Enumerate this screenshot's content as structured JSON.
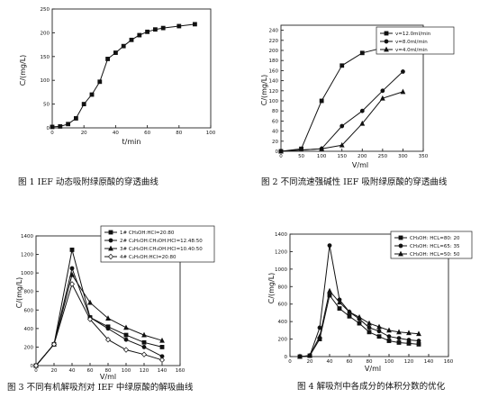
{
  "chart_data": [
    {
      "id": "fig1",
      "type": "line",
      "caption": "图 1   IEF 动态吸附绿原酸的穿透曲线",
      "xlabel": "t/min",
      "ylabel": "C/(mg/L)",
      "xlim": [
        0,
        100
      ],
      "ylim": [
        0,
        250
      ],
      "xticks": [
        0,
        20,
        40,
        60,
        80,
        100
      ],
      "yticks": [
        0,
        50,
        100,
        150,
        200,
        250
      ],
      "series": [
        {
          "name": "",
          "marker": "square",
          "x": [
            0,
            5,
            10,
            15,
            20,
            25,
            30,
            35,
            40,
            45,
            50,
            55,
            60,
            65,
            70,
            80,
            90
          ],
          "y": [
            2,
            3,
            8,
            20,
            50,
            70,
            97,
            145,
            158,
            172,
            185,
            195,
            202,
            207,
            210,
            214,
            218
          ]
        }
      ]
    },
    {
      "id": "fig2",
      "type": "line",
      "caption": "图 2   不同流速强碱性 IEF 吸附绿原酸的穿透曲线",
      "xlabel": "V/ml",
      "ylabel": "C/(mg/L)",
      "xlim": [
        0,
        350
      ],
      "ylim": [
        0,
        250
      ],
      "xticks": [
        0,
        50,
        100,
        150,
        200,
        250,
        300,
        350
      ],
      "yticks": [
        0,
        20,
        40,
        60,
        80,
        100,
        120,
        140,
        160,
        180,
        200,
        220,
        240
      ],
      "series": [
        {
          "name": "v=12.0ml/min",
          "marker": "square",
          "x": [
            0,
            50,
            100,
            150,
            200,
            250,
            300
          ],
          "y": [
            0,
            5,
            100,
            170,
            195,
            205,
            213
          ]
        },
        {
          "name": "v=8.0ml/min",
          "marker": "circle",
          "x": [
            0,
            100,
            150,
            200,
            250,
            300
          ],
          "y": [
            0,
            5,
            50,
            80,
            120,
            158
          ]
        },
        {
          "name": "v=4.0ml/min",
          "marker": "triangle",
          "x": [
            0,
            100,
            150,
            200,
            250,
            300
          ],
          "y": [
            0,
            5,
            12,
            55,
            105,
            118
          ]
        }
      ]
    },
    {
      "id": "fig3",
      "type": "line",
      "caption": "图 3   不同有机解吸剂对 IEF 中绿原酸的解吸曲线",
      "xlabel": "V/ml",
      "ylabel": "C/(mg/L)",
      "xlim": [
        0,
        160
      ],
      "ylim": [
        0,
        1400
      ],
      "xticks": [
        0,
        20,
        40,
        60,
        80,
        100,
        120,
        140,
        160
      ],
      "yticks": [
        0,
        200,
        400,
        600,
        800,
        1000,
        1200,
        1400
      ],
      "series": [
        {
          "name": "1# CH₃OH:HCl=20:80",
          "marker": "square",
          "x": [
            0,
            20,
            40,
            60,
            80,
            100,
            120,
            140
          ],
          "y": [
            0,
            230,
            1250,
            520,
            420,
            330,
            250,
            200
          ]
        },
        {
          "name": "2# C₂H₅OH:CH₃OH:HCl=12.48:50",
          "marker": "circle",
          "x": [
            0,
            20,
            40,
            60,
            80,
            100,
            120,
            140
          ],
          "y": [
            0,
            230,
            1050,
            520,
            400,
            280,
            200,
            100
          ]
        },
        {
          "name": "3# C₂H₅OH:CH₃OH:HCl=10.40:50",
          "marker": "triangle",
          "x": [
            0,
            20,
            40,
            60,
            80,
            100,
            120,
            140
          ],
          "y": [
            0,
            230,
            980,
            680,
            510,
            410,
            330,
            270
          ]
        },
        {
          "name": "4# C₂H₅OH:HCl=20:80",
          "marker": "diamond",
          "x": [
            0,
            20,
            40,
            60,
            80,
            100,
            120,
            140
          ],
          "y": [
            0,
            230,
            880,
            500,
            280,
            170,
            120,
            60
          ]
        }
      ]
    },
    {
      "id": "fig4",
      "type": "line",
      "caption": "图 4   解吸剂中各成分的体积分数的优化",
      "xlabel": "V/ml",
      "ylabel": "C/(mg/L)",
      "xlim": [
        0,
        160
      ],
      "ylim": [
        0,
        1400
      ],
      "xticks": [
        0,
        20,
        40,
        60,
        80,
        100,
        120,
        140,
        160
      ],
      "yticks": [
        0,
        200,
        400,
        600,
        800,
        1000,
        1200,
        1400
      ],
      "series": [
        {
          "name": "CH₃OH:  HCL=80: 20",
          "marker": "square",
          "x": [
            10,
            20,
            30,
            40,
            50,
            60,
            70,
            80,
            90,
            100,
            110,
            120,
            130
          ],
          "y": [
            0,
            10,
            200,
            700,
            550,
            460,
            380,
            280,
            230,
            180,
            160,
            150,
            140
          ]
        },
        {
          "name": "CH₃OH:  HCL=65: 35",
          "marker": "circle",
          "x": [
            10,
            20,
            30,
            40,
            50,
            60,
            70,
            80,
            90,
            100,
            110,
            120,
            130
          ],
          "y": [
            0,
            10,
            330,
            1270,
            650,
            510,
            430,
            330,
            290,
            230,
            210,
            190,
            180
          ]
        },
        {
          "name": "CH₃OH:  HCL=50: 50",
          "marker": "triangle",
          "x": [
            10,
            20,
            30,
            40,
            50,
            60,
            70,
            80,
            90,
            100,
            110,
            120,
            130
          ],
          "y": [
            0,
            10,
            230,
            750,
            620,
            510,
            450,
            380,
            340,
            300,
            280,
            270,
            260
          ]
        }
      ]
    }
  ]
}
